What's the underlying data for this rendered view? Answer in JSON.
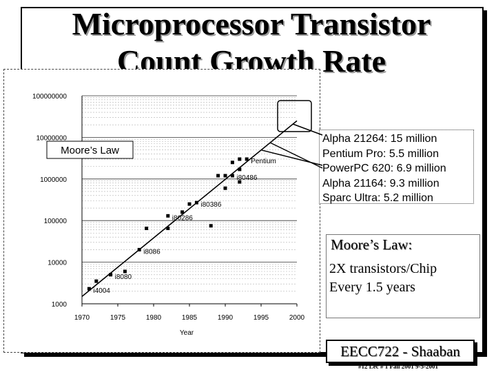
{
  "slide": {
    "title_line1": "Microprocessor Transistor",
    "title_line2": "Count Growth Rate"
  },
  "callout": {
    "lines": [
      "Alpha 21264: 15 million",
      "Pentium Pro: 5.5 million",
      "PowerPC 620: 6.9 million",
      "Alpha 21164: 9.3 million",
      "Sparc Ultra: 5.2 million"
    ]
  },
  "law": {
    "title": "Moore’s Law:",
    "line1": "2X transistors/Chip",
    "line2": "Every 1.5 years"
  },
  "footer": {
    "label": "EECC722 - Shaaban",
    "note": "#12   Lec # 1   Fall 2001  9-5-2001"
  },
  "chart_data": {
    "type": "scatter",
    "xlabel": "Year",
    "ylabel": "",
    "xlim": [
      1970,
      2000
    ],
    "ylim": [
      1000,
      100000000
    ],
    "y_scale": "log",
    "grid": true,
    "x_ticks": [
      "1970",
      "1975",
      "1980",
      "1985",
      "1990",
      "1995",
      "2000"
    ],
    "y_ticks": [
      "1000",
      "10000",
      "100000",
      "1000000",
      "10000000",
      "100000000"
    ],
    "trendline": {
      "label": "Moore’s Law",
      "x": [
        1970,
        2000
      ],
      "y": [
        1500,
        25000000
      ]
    },
    "points": [
      {
        "x": 1971,
        "y": 2300,
        "label": "i4004"
      },
      {
        "x": 1972,
        "y": 3500,
        "label": ""
      },
      {
        "x": 1974,
        "y": 5000,
        "label": "i8080"
      },
      {
        "x": 1976,
        "y": 6000,
        "label": ""
      },
      {
        "x": 1978,
        "y": 20000,
        "label": "i8086"
      },
      {
        "x": 1979,
        "y": 65000,
        "label": ""
      },
      {
        "x": 1982,
        "y": 65000,
        "label": ""
      },
      {
        "x": 1982,
        "y": 130000,
        "label": "i80286"
      },
      {
        "x": 1984,
        "y": 160000,
        "label": ""
      },
      {
        "x": 1985,
        "y": 250000,
        "label": ""
      },
      {
        "x": 1986,
        "y": 270000,
        "label": "i80386"
      },
      {
        "x": 1988,
        "y": 75000,
        "label": ""
      },
      {
        "x": 1989,
        "y": 1200000,
        "label": ""
      },
      {
        "x": 1990,
        "y": 1200000,
        "label": ""
      },
      {
        "x": 1990,
        "y": 600000,
        "label": ""
      },
      {
        "x": 1991,
        "y": 1200000,
        "label": "i80486"
      },
      {
        "x": 1991,
        "y": 2500000,
        "label": ""
      },
      {
        "x": 1992,
        "y": 1700000,
        "label": ""
      },
      {
        "x": 1992,
        "y": 3000000,
        "label": ""
      },
      {
        "x": 1993,
        "y": 3000000,
        "label": "Pentium"
      },
      {
        "x": 1992,
        "y": 850000,
        "label": ""
      }
    ]
  }
}
